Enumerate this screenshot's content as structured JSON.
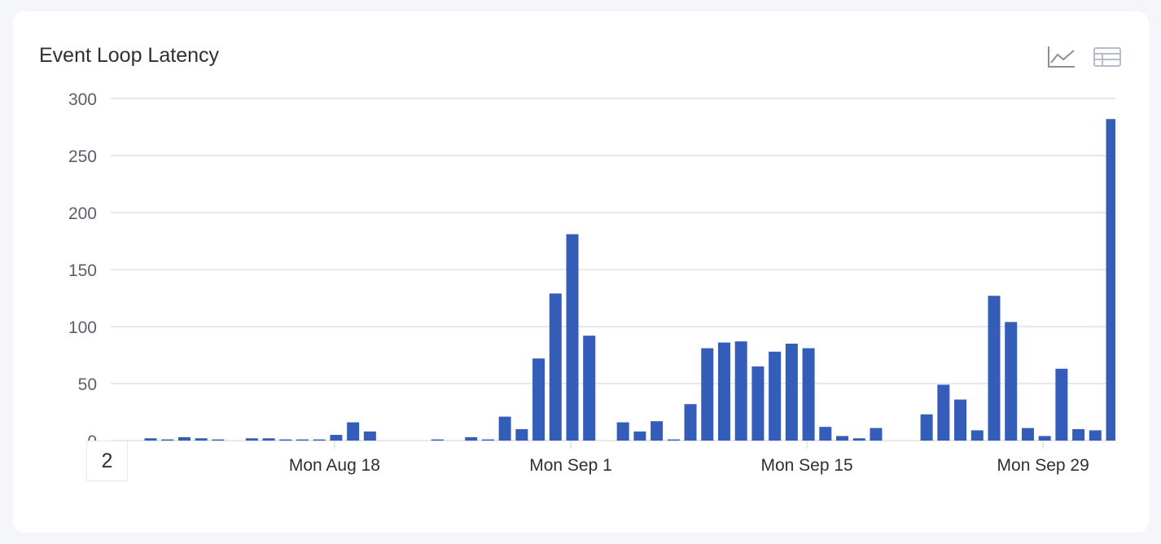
{
  "card": {
    "title": "Event Loop Latency",
    "page_indicator": "2"
  },
  "icons": [
    "line-chart-icon",
    "table-icon"
  ],
  "colors": {
    "bar": "#345dba",
    "grid": "#dfe1ea",
    "text": "#5c5f6b"
  },
  "chart_data": {
    "type": "bar",
    "title": "Event Loop Latency",
    "xlabel": "",
    "ylabel": "",
    "ylim": [
      0,
      300
    ],
    "yticks": [
      "0",
      "50",
      "100",
      "150",
      "200",
      "250",
      "300"
    ],
    "xticks": [
      {
        "label": "Mon Aug 18",
        "date": "Aug 18"
      },
      {
        "label": "Mon Sep 1",
        "date": "Sep 1"
      },
      {
        "label": "Mon Sep 15",
        "date": "Sep 15"
      },
      {
        "label": "Mon Sep 29",
        "date": "Sep 29"
      }
    ],
    "grid": true,
    "dates": [
      "Aug 7",
      "Aug 8",
      "Aug 9",
      "Aug 10",
      "Aug 11",
      "Aug 12",
      "Aug 13",
      "Aug 14",
      "Aug 15",
      "Aug 16",
      "Aug 17",
      "Aug 18",
      "Aug 19",
      "Aug 20",
      "Aug 21",
      "Aug 22",
      "Aug 23",
      "Aug 24",
      "Aug 25",
      "Aug 26",
      "Aug 27",
      "Aug 28",
      "Aug 29",
      "Aug 30",
      "Aug 31",
      "Sep 1",
      "Sep 2",
      "Sep 3",
      "Sep 4",
      "Sep 5",
      "Sep 6",
      "Sep 7",
      "Sep 8",
      "Sep 9",
      "Sep 10",
      "Sep 11",
      "Sep 12",
      "Sep 13",
      "Sep 14",
      "Sep 15",
      "Sep 16",
      "Sep 17",
      "Sep 18",
      "Sep 19",
      "Sep 20",
      "Sep 21",
      "Sep 22",
      "Sep 23",
      "Sep 24",
      "Sep 25",
      "Sep 26",
      "Sep 27",
      "Sep 28",
      "Sep 29",
      "Sep 30",
      "Oct 1",
      "Oct 2",
      "Oct 3"
    ],
    "values": [
      2,
      1,
      3,
      2,
      1,
      0,
      2,
      2,
      1,
      1,
      1,
      5,
      16,
      8,
      0,
      0,
      0,
      1,
      0,
      3,
      1,
      21,
      10,
      72,
      129,
      181,
      92,
      0,
      16,
      8,
      17,
      1,
      32,
      81,
      86,
      87,
      65,
      78,
      85,
      81,
      12,
      4,
      2,
      11,
      0,
      0,
      23,
      49,
      36,
      9,
      127,
      104,
      11,
      4,
      63,
      10,
      9,
      282
    ]
  }
}
